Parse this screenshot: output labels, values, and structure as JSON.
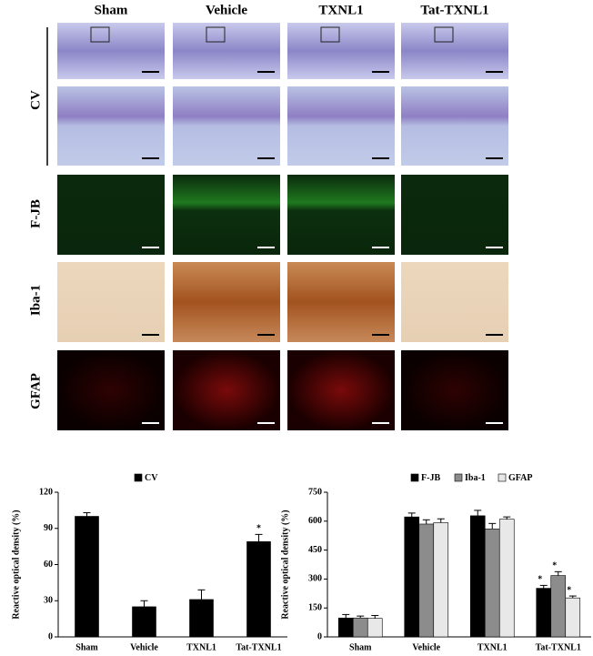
{
  "columns": [
    "Sham",
    "Vehicle",
    "TXNL1",
    "Tat-TXNL1"
  ],
  "rows": [
    "CV",
    "F-JB",
    "Iba-1",
    "GFAP"
  ],
  "chart_data": [
    {
      "type": "bar",
      "categories": [
        "Sham",
        "Vehicle",
        "TXNL1",
        "Tat-TXNL1"
      ],
      "ylabel": "Reactive optical density (%)",
      "ylim": [
        0,
        120
      ],
      "yticks": [
        0,
        30,
        60,
        90,
        120
      ],
      "series": [
        {
          "name": "CV",
          "color": "#000000",
          "values": [
            100,
            25,
            31,
            79
          ],
          "errors": [
            3,
            5,
            8,
            6
          ],
          "markers": [
            null,
            null,
            null,
            "*"
          ]
        }
      ]
    },
    {
      "type": "bar",
      "categories": [
        "Sham",
        "Vehicle",
        "TXNL1",
        "Tat-TXNL1"
      ],
      "ylabel": "Reactive optical density (%)",
      "ylim": [
        0,
        750
      ],
      "yticks": [
        0,
        150,
        300,
        450,
        600,
        750
      ],
      "series": [
        {
          "name": "F-JB",
          "color": "#000000",
          "values": [
            98,
            622,
            628,
            252
          ],
          "errors": [
            18,
            20,
            28,
            15
          ],
          "markers": [
            null,
            null,
            null,
            "*"
          ]
        },
        {
          "name": "Iba-1",
          "color": "#8c8c8c",
          "values": [
            98,
            585,
            560,
            318
          ],
          "errors": [
            10,
            22,
            28,
            20
          ],
          "markers": [
            null,
            null,
            null,
            "*"
          ]
        },
        {
          "name": "GFAP",
          "color": "#e8e8e8",
          "values": [
            96,
            592,
            610,
            202
          ],
          "errors": [
            15,
            20,
            12,
            10
          ],
          "markers": [
            null,
            null,
            null,
            "*"
          ]
        }
      ]
    }
  ]
}
